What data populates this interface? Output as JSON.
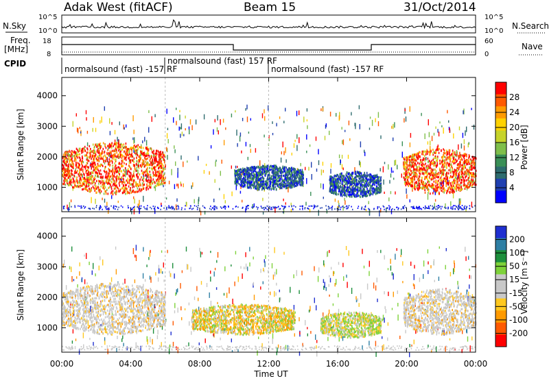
{
  "header": {
    "station": "Adak West (fitACF)",
    "beam": "Beam 15",
    "date": "31/Oct/2014"
  },
  "top_panels": {
    "nsky_label": "N.Sky",
    "nsky_ticks": [
      "10^5",
      "10^0"
    ],
    "nsearch_label": "N.Search",
    "nsearch_ticks": [
      "10^5",
      "10^0"
    ],
    "freq_label_line1": "Freq.",
    "freq_label_line2": "[MHz]",
    "freq_ticks": [
      "18",
      "8"
    ],
    "nave_label": "Nave",
    "nave_ticks": [
      "60",
      "0"
    ],
    "cpid_label": "CPID",
    "cpid_segments": [
      {
        "text": "normalsound (fast) -157 RF"
      },
      {
        "text": "normalsound (fast) 157 RF"
      },
      {
        "text": "normalsound (fast) -157 RF"
      }
    ]
  },
  "chart_data": [
    {
      "type": "heatmap",
      "name": "power",
      "ylabel": "Slant Range [km]",
      "xlabel": "Time UT",
      "x_ticks": [
        "00:00",
        "04:00",
        "08:00",
        "12:00",
        "16:00",
        "20:00",
        "00:00"
      ],
      "x_hours": [
        0,
        4,
        8,
        12,
        16,
        20,
        24
      ],
      "y_ticks": [
        1000,
        2000,
        3000,
        4000
      ],
      "ylim": [
        200,
        4600
      ],
      "colorbar_label": "Power [dB]",
      "colorbar_ticks": [
        "28",
        "24",
        "20",
        "16",
        "12",
        "8",
        "4"
      ],
      "colorbar_colors": [
        "#ff0000",
        "#ff5a00",
        "#ff9b00",
        "#ffd200",
        "#c6d32a",
        "#7fbf4b",
        "#3a8f57",
        "#2d6b6e",
        "#1f3fb0",
        "#0000ff"
      ],
      "regions": [
        {
          "t0": 0.0,
          "t1": 6.0,
          "r0": 800,
          "r1": 2500,
          "level": "high"
        },
        {
          "t0": 10.0,
          "t1": 14.0,
          "r0": 950,
          "r1": 1750,
          "level": "low"
        },
        {
          "t0": 15.5,
          "t1": 18.5,
          "r0": 700,
          "r1": 1550,
          "level": "low"
        },
        {
          "t0": 19.8,
          "t1": 24.0,
          "r0": 800,
          "r1": 2300,
          "level": "high"
        }
      ]
    },
    {
      "type": "heatmap",
      "name": "velocity",
      "ylabel": "Slant Range [km]",
      "xlabel": "Time UT",
      "x_ticks": [
        "00:00",
        "04:00",
        "08:00",
        "12:00",
        "16:00",
        "20:00",
        "00:00"
      ],
      "x_hours": [
        0,
        4,
        8,
        12,
        16,
        20,
        24
      ],
      "y_ticks": [
        1000,
        2000,
        3000,
        4000
      ],
      "ylim": [
        200,
        4600
      ],
      "colorbar_label": "Velocity [m s⁻¹]",
      "colorbar_ticks": [
        "200",
        "100",
        "50",
        "15",
        "-15",
        "-50",
        "-100",
        "-200"
      ],
      "colorbar_colors": [
        "#1f2fd0",
        "#2e7fa4",
        "#1d8f3c",
        "#7ed23a",
        "#c8c8c8",
        "#c8c8c8",
        "#ffc81e",
        "#ff9a00",
        "#ff5a00",
        "#ff0000"
      ],
      "regions": [
        {
          "t0": 0.0,
          "t1": 6.0,
          "r0": 800,
          "r1": 2500,
          "level": "gray"
        },
        {
          "t0": 7.5,
          "t1": 13.5,
          "r0": 800,
          "r1": 1800,
          "level": "orange"
        },
        {
          "t0": 15.0,
          "t1": 18.5,
          "r0": 700,
          "r1": 1550,
          "level": "mixed"
        },
        {
          "t0": 19.8,
          "t1": 24.0,
          "r0": 800,
          "r1": 2300,
          "level": "gray"
        }
      ]
    }
  ]
}
